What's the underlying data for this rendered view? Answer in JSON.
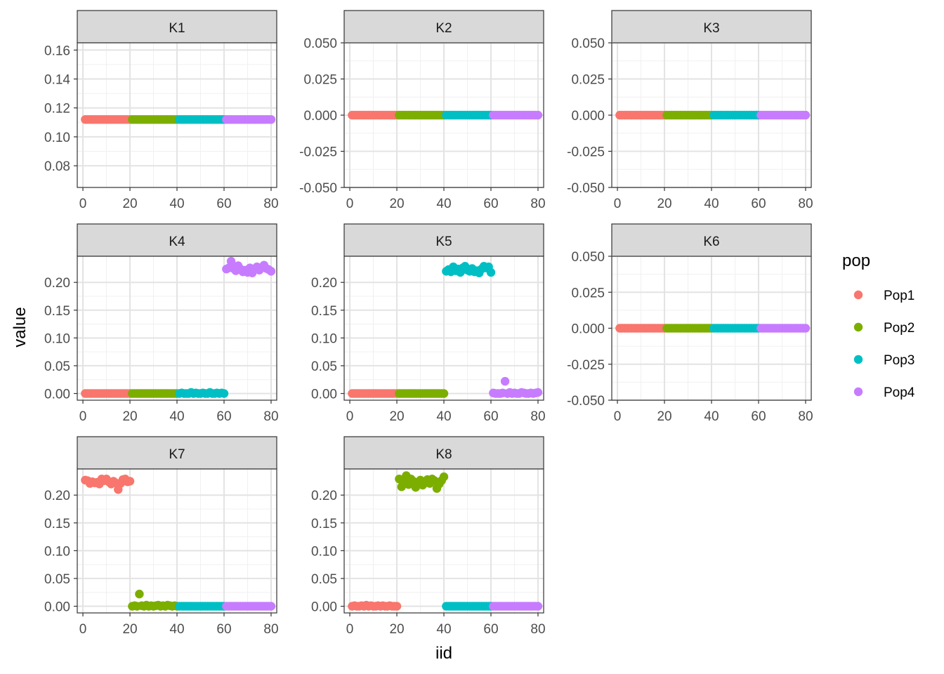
{
  "chart_data": {
    "type": "scatter",
    "xlabel": "iid",
    "ylabel": "value",
    "legend": {
      "title": "pop",
      "position": "right",
      "entries": [
        {
          "name": "Pop1",
          "color": "#F8766D",
          "range": [
            1,
            20
          ]
        },
        {
          "name": "Pop2",
          "color": "#7CAE00",
          "range": [
            21,
            40
          ]
        },
        {
          "name": "Pop3",
          "color": "#00BFC4",
          "range": [
            41,
            60
          ]
        },
        {
          "name": "Pop4",
          "color": "#C77CFF",
          "range": [
            61,
            80
          ]
        }
      ]
    },
    "x_ticks": [
      "0",
      "20",
      "40",
      "60",
      "80"
    ],
    "x_range": [
      0,
      80
    ],
    "grid": true,
    "panels": [
      {
        "label": "K1",
        "ylim": [
          0.065,
          0.165
        ],
        "y_ticks": [
          0.08,
          0.1,
          0.12,
          0.14,
          0.16
        ],
        "y_tick_labels": [
          "0.08",
          "0.10",
          "0.12",
          "0.14",
          "0.16"
        ],
        "series": {
          "Pop1": {
            "base": 0.112
          },
          "Pop2": {
            "base": 0.112
          },
          "Pop3": {
            "base": 0.112
          },
          "Pop4": {
            "base": 0.112
          }
        }
      },
      {
        "label": "K2",
        "ylim": [
          -0.05,
          0.05
        ],
        "y_ticks": [
          -0.05,
          -0.025,
          0,
          0.025,
          0.05
        ],
        "y_tick_labels": [
          "-0.050",
          "-0.025",
          "0.000",
          "0.025",
          "0.050"
        ],
        "series": {
          "Pop1": {
            "base": 0
          },
          "Pop2": {
            "base": 0
          },
          "Pop3": {
            "base": 0
          },
          "Pop4": {
            "base": 0
          }
        }
      },
      {
        "label": "K3",
        "ylim": [
          -0.05,
          0.05
        ],
        "y_ticks": [
          -0.05,
          -0.025,
          0,
          0.025,
          0.05
        ],
        "y_tick_labels": [
          "-0.050",
          "-0.025",
          "0.000",
          "0.025",
          "0.050"
        ],
        "series": {
          "Pop1": {
            "base": 0
          },
          "Pop2": {
            "base": 0
          },
          "Pop3": {
            "base": 0
          },
          "Pop4": {
            "base": 0
          }
        }
      },
      {
        "label": "K4",
        "ylim": [
          -0.012,
          0.247
        ],
        "y_ticks": [
          0,
          0.05,
          0.1,
          0.15,
          0.2
        ],
        "y_tick_labels": [
          "0.00",
          "0.05",
          "0.10",
          "0.15",
          "0.20"
        ],
        "series": {
          "Pop1": {
            "base": 0
          },
          "Pop2": {
            "base": 0
          },
          "Pop3": {
            "base": 0,
            "values": [
              0,
              0.001,
              0,
              0,
              0,
              0.002,
              0,
              0.001,
              0,
              0,
              0.001,
              0,
              0,
              0.002,
              0,
              0,
              0.001,
              0,
              0.001,
              0
            ]
          },
          "Pop4": {
            "base": 0.224,
            "values": [
              0.224,
              0.226,
              0.238,
              0.225,
              0.221,
              0.23,
              0.224,
              0.219,
              0.222,
              0.218,
              0.226,
              0.217,
              0.224,
              0.228,
              0.222,
              0.227,
              0.231,
              0.225,
              0.223,
              0.22
            ]
          }
        }
      },
      {
        "label": "K5",
        "ylim": [
          -0.012,
          0.247
        ],
        "y_ticks": [
          0,
          0.05,
          0.1,
          0.15,
          0.2
        ],
        "y_tick_labels": [
          "0.00",
          "0.05",
          "0.10",
          "0.15",
          "0.20"
        ],
        "series": {
          "Pop1": {
            "base": 0
          },
          "Pop2": {
            "base": 0
          },
          "Pop3": {
            "base": 0.222,
            "values": [
              0.22,
              0.223,
              0.219,
              0.228,
              0.221,
              0.224,
              0.218,
              0.226,
              0.229,
              0.222,
              0.22,
              0.225,
              0.219,
              0.221,
              0.217,
              0.224,
              0.229,
              0.226,
              0.228,
              0.218
            ]
          },
          "Pop4": {
            "base": 0,
            "values": [
              0.001,
              0,
              0,
              0,
              0.001,
              0.022,
              0,
              0.002,
              0,
              0.001,
              0,
              0,
              0.002,
              0.001,
              0,
              0,
              0.001,
              0,
              0.001,
              0.002
            ]
          }
        }
      },
      {
        "label": "K6",
        "ylim": [
          -0.05,
          0.05
        ],
        "y_ticks": [
          -0.05,
          -0.025,
          0,
          0.025,
          0.05
        ],
        "y_tick_labels": [
          "-0.050",
          "-0.025",
          "0.000",
          "0.025",
          "0.050"
        ],
        "series": {
          "Pop1": {
            "base": 0
          },
          "Pop2": {
            "base": 0
          },
          "Pop3": {
            "base": 0
          },
          "Pop4": {
            "base": 0
          }
        }
      },
      {
        "label": "K7",
        "ylim": [
          -0.012,
          0.247
        ],
        "y_ticks": [
          0,
          0.05,
          0.1,
          0.15,
          0.2
        ],
        "y_tick_labels": [
          "0.00",
          "0.05",
          "0.10",
          "0.15",
          "0.20"
        ],
        "series": {
          "Pop1": {
            "base": 0.225,
            "values": [
              0.227,
              0.226,
              0.221,
              0.224,
              0.222,
              0.223,
              0.22,
              0.229,
              0.226,
              0.229,
              0.224,
              0.22,
              0.225,
              0.222,
              0.21,
              0.221,
              0.228,
              0.229,
              0.224,
              0.225
            ]
          },
          "Pop2": {
            "base": 0,
            "values": [
              0,
              0.001,
              0,
              0.022,
              0.001,
              0,
              0.002,
              0,
              0.001,
              0,
              0.001,
              0.002,
              0,
              0.001,
              0,
              0.002,
              0.001,
              0,
              0.001,
              0
            ]
          },
          "Pop3": {
            "base": 0
          },
          "Pop4": {
            "base": 0
          }
        }
      },
      {
        "label": "K8",
        "ylim": [
          -0.012,
          0.247
        ],
        "y_ticks": [
          0,
          0.05,
          0.1,
          0.15,
          0.2
        ],
        "y_tick_labels": [
          "0.00",
          "0.05",
          "0.10",
          "0.15",
          "0.20"
        ],
        "series": {
          "Pop1": {
            "base": 0,
            "values": [
              0,
              0.001,
              0,
              0,
              0.001,
              0,
              0.002,
              0,
              0.001,
              0,
              0,
              0.001,
              0,
              0.001,
              0,
              0,
              0.001,
              0,
              0,
              0
            ]
          },
          "Pop2": {
            "base": 0.223,
            "values": [
              0.229,
              0.215,
              0.226,
              0.235,
              0.219,
              0.229,
              0.225,
              0.214,
              0.222,
              0.227,
              0.218,
              0.223,
              0.228,
              0.221,
              0.229,
              0.226,
              0.212,
              0.22,
              0.226,
              0.233
            ]
          },
          "Pop3": {
            "base": 0
          },
          "Pop4": {
            "base": 0
          }
        }
      }
    ]
  }
}
